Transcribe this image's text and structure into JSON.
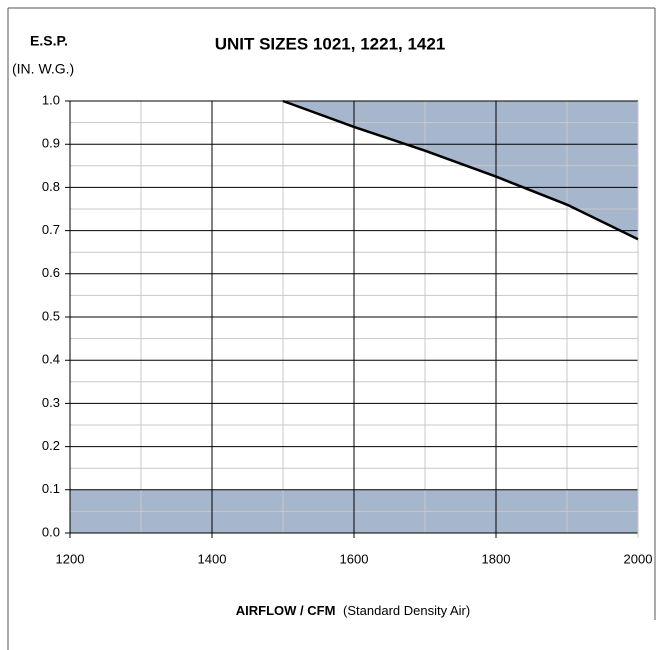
{
  "chart_data": {
    "type": "line",
    "title": "UNIT SIZES 1021, 1221, 1421",
    "ylabel": "E.S.P.",
    "ylabel_units": "(IN. W.G.)",
    "xlabel": "AIRFLOW / CFM",
    "xlabel_note": "(Standard Density Air)",
    "series": [
      {
        "x": [
          1500,
          1600,
          1700,
          1800,
          1900,
          2000
        ],
        "values": [
          1.0,
          0.94,
          0.885,
          0.825,
          0.76,
          0.68
        ],
        "color": "#000000",
        "fill_above": "#a6b6cc"
      }
    ],
    "bands": [
      {
        "y": [
          0,
          0.1
        ],
        "color": "#a6b6cc"
      }
    ],
    "xlim": [
      1200,
      2000
    ],
    "xticks": [
      1200,
      1400,
      1600,
      1800,
      2000
    ],
    "xticks_minor": [
      1300,
      1500,
      1700,
      1900
    ],
    "ylim": [
      0,
      1
    ],
    "yticks": [
      {
        "value": 0,
        "label": "0.0"
      },
      0.1,
      0.2,
      0.3,
      0.4,
      0.5,
      0.6,
      0.7,
      0.8,
      0.9,
      {
        "value": 1,
        "label": "1.0"
      }
    ],
    "yticks_minor": [
      0.05,
      0.15,
      0.25,
      0.35,
      0.45,
      0.55,
      0.65,
      0.75,
      0.85,
      0.95
    ],
    "grid": true
  }
}
